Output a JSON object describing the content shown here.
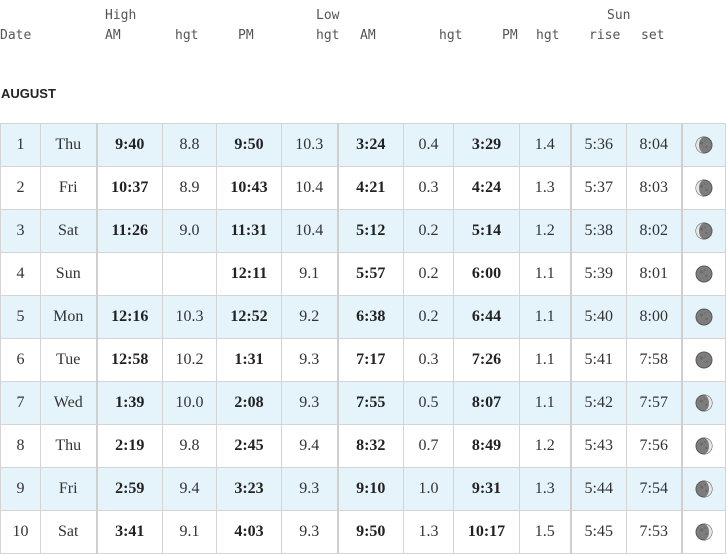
{
  "header": {
    "high": "High",
    "low": "Low",
    "sun": "Sun",
    "date": "Date",
    "am": "AM",
    "hgt": "hgt",
    "pm": "PM",
    "rise": "rise",
    "set": "set"
  },
  "month": "AUGUST",
  "rows": [
    {
      "day": "1",
      "dow": "Thu",
      "h_am": "9:40",
      "h_am_hgt": "8.8",
      "h_pm": "9:50",
      "h_pm_hgt": "10.3",
      "l_am": "3:24",
      "l_am_hgt": "0.4",
      "l_pm": "3:29",
      "l_pm_hgt": "1.4",
      "rise": "5:36",
      "set": "8:04",
      "moon": "waning-crescent-moon-icon",
      "shade": true
    },
    {
      "day": "2",
      "dow": "Fri",
      "h_am": "10:37",
      "h_am_hgt": "8.9",
      "h_pm": "10:43",
      "h_pm_hgt": "10.4",
      "l_am": "4:21",
      "l_am_hgt": "0.3",
      "l_pm": "4:24",
      "l_pm_hgt": "1.3",
      "rise": "5:37",
      "set": "8:03",
      "moon": "waning-crescent-moon-icon",
      "shade": false
    },
    {
      "day": "3",
      "dow": "Sat",
      "h_am": "11:26",
      "h_am_hgt": "9.0",
      "h_pm": "11:31",
      "h_pm_hgt": "10.4",
      "l_am": "5:12",
      "l_am_hgt": "0.2",
      "l_pm": "5:14",
      "l_pm_hgt": "1.2",
      "rise": "5:38",
      "set": "8:02",
      "moon": "waning-crescent-moon-icon",
      "shade": true
    },
    {
      "day": "4",
      "dow": "Sun",
      "h_am": "",
      "h_am_hgt": "",
      "h_pm": "12:11",
      "h_pm_hgt": "9.1",
      "l_am": "5:57",
      "l_am_hgt": "0.2",
      "l_pm": "6:00",
      "l_pm_hgt": "1.1",
      "rise": "5:39",
      "set": "8:01",
      "moon": "new-moon-icon",
      "shade": false
    },
    {
      "day": "5",
      "dow": "Mon",
      "h_am": "12:16",
      "h_am_hgt": "10.3",
      "h_pm": "12:52",
      "h_pm_hgt": "9.2",
      "l_am": "6:38",
      "l_am_hgt": "0.2",
      "l_pm": "6:44",
      "l_pm_hgt": "1.1",
      "rise": "5:40",
      "set": "8:00",
      "moon": "new-moon-icon",
      "shade": true
    },
    {
      "day": "6",
      "dow": "Tue",
      "h_am": "12:58",
      "h_am_hgt": "10.2",
      "h_pm": "1:31",
      "h_pm_hgt": "9.3",
      "l_am": "7:17",
      "l_am_hgt": "0.3",
      "l_pm": "7:26",
      "l_pm_hgt": "1.1",
      "rise": "5:41",
      "set": "7:58",
      "moon": "new-moon-icon",
      "shade": false
    },
    {
      "day": "7",
      "dow": "Wed",
      "h_am": "1:39",
      "h_am_hgt": "10.0",
      "h_pm": "2:08",
      "h_pm_hgt": "9.3",
      "l_am": "7:55",
      "l_am_hgt": "0.5",
      "l_pm": "8:07",
      "l_pm_hgt": "1.1",
      "rise": "5:42",
      "set": "7:57",
      "moon": "waxing-crescent-moon-icon",
      "shade": true
    },
    {
      "day": "8",
      "dow": "Thu",
      "h_am": "2:19",
      "h_am_hgt": "9.8",
      "h_pm": "2:45",
      "h_pm_hgt": "9.4",
      "l_am": "8:32",
      "l_am_hgt": "0.7",
      "l_pm": "8:49",
      "l_pm_hgt": "1.2",
      "rise": "5:43",
      "set": "7:56",
      "moon": "waxing-crescent-moon-icon",
      "shade": false
    },
    {
      "day": "9",
      "dow": "Fri",
      "h_am": "2:59",
      "h_am_hgt": "9.4",
      "h_pm": "3:23",
      "h_pm_hgt": "9.3",
      "l_am": "9:10",
      "l_am_hgt": "1.0",
      "l_pm": "9:31",
      "l_pm_hgt": "1.3",
      "rise": "5:44",
      "set": "7:54",
      "moon": "waxing-crescent-moon-icon",
      "shade": true
    },
    {
      "day": "10",
      "dow": "Sat",
      "h_am": "3:41",
      "h_am_hgt": "9.1",
      "h_pm": "4:03",
      "h_pm_hgt": "9.3",
      "l_am": "9:50",
      "l_am_hgt": "1.3",
      "l_pm": "10:17",
      "l_pm_hgt": "1.5",
      "rise": "5:45",
      "set": "7:53",
      "moon": "waxing-crescent-moon-icon",
      "shade": false
    }
  ]
}
